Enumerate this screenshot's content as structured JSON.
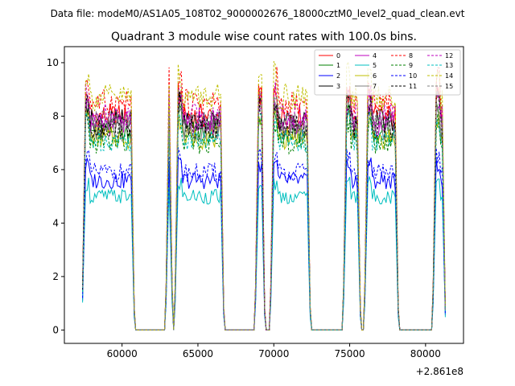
{
  "chart_data": {
    "type": "line",
    "suptitle": "Data file: modeM0/AS1A05_108T02_9000002676_18000cztM0_level2_quad_clean.evt",
    "title": "Quadrant 3 module wise count rates with 100.0s bins.",
    "xlabel": "",
    "ylabel": "",
    "x_offset_label": "+2.861e8",
    "xlim": [
      56200,
      82500
    ],
    "ylim": [
      -0.5,
      10.6
    ],
    "x_ticks": [
      60000,
      65000,
      70000,
      75000,
      80000
    ],
    "x_tick_labels": [
      "60000",
      "65000",
      "70000",
      "75000",
      "80000"
    ],
    "y_ticks": [
      0,
      2,
      4,
      6,
      8,
      10
    ],
    "y_tick_labels": [
      "0",
      "2",
      "4",
      "6",
      "8",
      "10"
    ],
    "grid": false,
    "legend_position": "upper-right",
    "active_segments": [
      [
        57400,
        60800
      ],
      [
        62900,
        63300
      ],
      [
        63500,
        66700
      ],
      [
        68800,
        69400
      ],
      [
        69800,
        72400
      ],
      [
        74600,
        75700
      ],
      [
        76000,
        78200
      ],
      [
        80500,
        81300
      ]
    ],
    "series": [
      {
        "name": "0",
        "color": "#ff0000",
        "dash": "solid",
        "level": 8.0
      },
      {
        "name": "1",
        "color": "#008000",
        "dash": "solid",
        "level": 7.4
      },
      {
        "name": "2",
        "color": "#0000ff",
        "dash": "solid",
        "level": 5.6
      },
      {
        "name": "3",
        "color": "#000000",
        "dash": "solid",
        "level": 7.8
      },
      {
        "name": "4",
        "color": "#bf00bf",
        "dash": "solid",
        "level": 7.7
      },
      {
        "name": "5",
        "color": "#00bfbf",
        "dash": "solid",
        "level": 5.0
      },
      {
        "name": "6",
        "color": "#bfbf00",
        "dash": "solid",
        "level": 7.2
      },
      {
        "name": "7",
        "color": "#7f7f7f",
        "dash": "solid",
        "level": 7.5
      },
      {
        "name": "8",
        "color": "#ff0000",
        "dash": "dashed",
        "level": 8.5
      },
      {
        "name": "9",
        "color": "#008000",
        "dash": "dashed",
        "level": 7.0
      },
      {
        "name": "10",
        "color": "#0000ff",
        "dash": "dashed",
        "level": 5.9
      },
      {
        "name": "11",
        "color": "#000000",
        "dash": "dashed",
        "level": 7.6
      },
      {
        "name": "12",
        "color": "#bf00bf",
        "dash": "dashed",
        "level": 8.0
      },
      {
        "name": "13",
        "color": "#00bfbf",
        "dash": "dashed",
        "level": 7.1
      },
      {
        "name": "14",
        "color": "#bfbf00",
        "dash": "dashed",
        "level": 8.7
      },
      {
        "name": "15",
        "color": "#7f7f7f",
        "dash": "dashed",
        "level": 7.8
      }
    ]
  }
}
